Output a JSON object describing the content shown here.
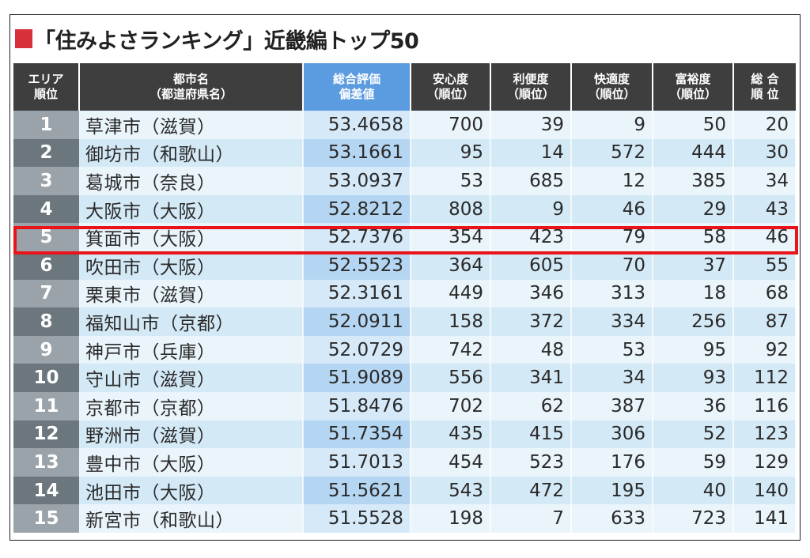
{
  "title": "「住みよさランキング」近畿編トップ50",
  "accent_color": "#d8303a",
  "highlight_color": "#e8141a",
  "columns": [
    {
      "line1": "エリア",
      "line2": "順位"
    },
    {
      "line1": "都市名",
      "line2": "（都道府県名）"
    },
    {
      "line1": "総合評価",
      "line2": "偏差値"
    },
    {
      "line1": "安心度",
      "line2": "（順位）"
    },
    {
      "line1": "利便度",
      "line2": "（順位）"
    },
    {
      "line1": "快適度",
      "line2": "（順位）"
    },
    {
      "line1": "富裕度",
      "line2": "（順位）"
    },
    {
      "line1": "総 合",
      "line2": "順 位"
    }
  ],
  "highlighted_rank": 5,
  "rows": [
    {
      "rank": "1",
      "city": "草津市（滋賀）",
      "score": "53.4658",
      "safety": "700",
      "convenience": "39",
      "comfort": "9",
      "wealth": "50",
      "overall": "20"
    },
    {
      "rank": "2",
      "city": "御坊市（和歌山）",
      "score": "53.1661",
      "safety": "95",
      "convenience": "14",
      "comfort": "572",
      "wealth": "444",
      "overall": "30"
    },
    {
      "rank": "3",
      "city": "葛城市（奈良）",
      "score": "53.0937",
      "safety": "53",
      "convenience": "685",
      "comfort": "12",
      "wealth": "385",
      "overall": "34"
    },
    {
      "rank": "4",
      "city": "大阪市（大阪）",
      "score": "52.8212",
      "safety": "808",
      "convenience": "9",
      "comfort": "46",
      "wealth": "29",
      "overall": "43"
    },
    {
      "rank": "5",
      "city": "箕面市（大阪）",
      "score": "52.7376",
      "safety": "354",
      "convenience": "423",
      "comfort": "79",
      "wealth": "58",
      "overall": "46"
    },
    {
      "rank": "6",
      "city": "吹田市（大阪）",
      "score": "52.5523",
      "safety": "364",
      "convenience": "605",
      "comfort": "70",
      "wealth": "37",
      "overall": "55"
    },
    {
      "rank": "7",
      "city": "栗東市（滋賀）",
      "score": "52.3161",
      "safety": "449",
      "convenience": "346",
      "comfort": "313",
      "wealth": "18",
      "overall": "68"
    },
    {
      "rank": "8",
      "city": "福知山市（京都）",
      "score": "52.0911",
      "safety": "158",
      "convenience": "372",
      "comfort": "334",
      "wealth": "256",
      "overall": "87"
    },
    {
      "rank": "9",
      "city": "神戸市（兵庫）",
      "score": "52.0729",
      "safety": "742",
      "convenience": "48",
      "comfort": "53",
      "wealth": "95",
      "overall": "92"
    },
    {
      "rank": "10",
      "city": "守山市（滋賀）",
      "score": "51.9089",
      "safety": "556",
      "convenience": "341",
      "comfort": "34",
      "wealth": "93",
      "overall": "112"
    },
    {
      "rank": "11",
      "city": "京都市（京都）",
      "score": "51.8476",
      "safety": "702",
      "convenience": "62",
      "comfort": "387",
      "wealth": "36",
      "overall": "116"
    },
    {
      "rank": "12",
      "city": "野洲市（滋賀）",
      "score": "51.7354",
      "safety": "435",
      "convenience": "415",
      "comfort": "306",
      "wealth": "52",
      "overall": "123"
    },
    {
      "rank": "13",
      "city": "豊中市（大阪）",
      "score": "51.7013",
      "safety": "454",
      "convenience": "523",
      "comfort": "176",
      "wealth": "59",
      "overall": "129"
    },
    {
      "rank": "14",
      "city": "池田市（大阪）",
      "score": "51.5621",
      "safety": "543",
      "convenience": "472",
      "comfort": "195",
      "wealth": "40",
      "overall": "140"
    },
    {
      "rank": "15",
      "city": "新宮市（和歌山）",
      "score": "51.5528",
      "safety": "198",
      "convenience": "7",
      "comfort": "633",
      "wealth": "723",
      "overall": "141"
    }
  ]
}
